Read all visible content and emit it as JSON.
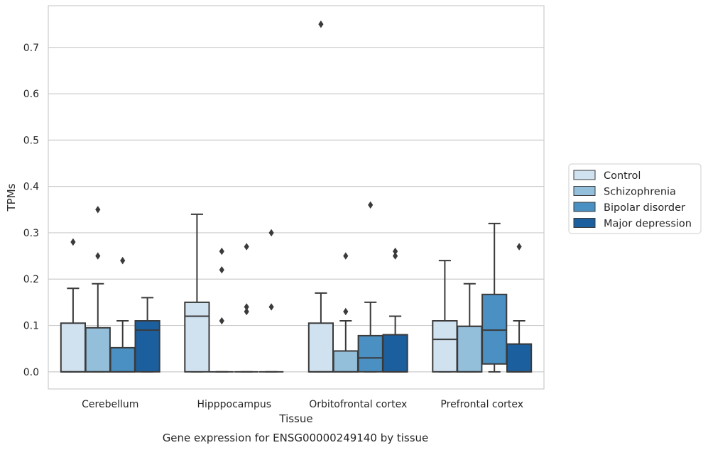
{
  "caption": "Gene expression for ENSG00000249140 by tissue",
  "colors": {
    "box_edge": "#3a3a3a",
    "grid": "#cccccc",
    "frame": "#cccccc",
    "series": [
      "#d0e1f0",
      "#94bfdb",
      "#4a90c2",
      "#1c5f9e"
    ]
  },
  "chart_data": {
    "type": "box",
    "xlabel": "Tissue",
    "ylabel": "TPMs",
    "ylim": [
      -0.037,
      0.79
    ],
    "yticks": [
      0.0,
      0.1,
      0.2,
      0.3,
      0.4,
      0.5,
      0.6,
      0.7
    ],
    "ytick_labels": [
      "0.0",
      "0.1",
      "0.2",
      "0.3",
      "0.4",
      "0.5",
      "0.6",
      "0.7"
    ],
    "grid": "horizontal",
    "legend_position": "right",
    "categories": [
      "Cerebellum",
      "Hipppocampus",
      "Orbitofrontal cortex",
      "Prefrontal cortex"
    ],
    "series": [
      {
        "name": "Control",
        "boxes": [
          {
            "whisker_low": 0.0,
            "q1": 0.0,
            "median": 0.0,
            "q3": 0.105,
            "whisker_high": 0.18,
            "outliers": [
              0.28
            ]
          },
          {
            "whisker_low": 0.0,
            "q1": 0.0,
            "median": 0.12,
            "q3": 0.15,
            "whisker_high": 0.34,
            "outliers": []
          },
          {
            "whisker_low": 0.0,
            "q1": 0.0,
            "median": 0.0,
            "q3": 0.105,
            "whisker_high": 0.17,
            "outliers": [
              0.75
            ]
          },
          {
            "whisker_low": 0.0,
            "q1": 0.0,
            "median": 0.07,
            "q3": 0.11,
            "whisker_high": 0.24,
            "outliers": []
          }
        ]
      },
      {
        "name": "Schizophrenia",
        "boxes": [
          {
            "whisker_low": 0.0,
            "q1": 0.0,
            "median": 0.0,
            "q3": 0.095,
            "whisker_high": 0.19,
            "outliers": [
              0.25,
              0.35
            ]
          },
          {
            "whisker_low": 0.0,
            "q1": 0.0,
            "median": 0.0,
            "q3": 0.0,
            "whisker_high": 0.0,
            "outliers": [
              0.11,
              0.22,
              0.26
            ]
          },
          {
            "whisker_low": 0.0,
            "q1": 0.0,
            "median": 0.0,
            "q3": 0.045,
            "whisker_high": 0.11,
            "outliers": [
              0.13,
              0.25
            ]
          },
          {
            "whisker_low": 0.0,
            "q1": 0.0,
            "median": 0.0,
            "q3": 0.098,
            "whisker_high": 0.19,
            "outliers": []
          }
        ]
      },
      {
        "name": "Bipolar disorder",
        "boxes": [
          {
            "whisker_low": 0.0,
            "q1": 0.0,
            "median": 0.0,
            "q3": 0.052,
            "whisker_high": 0.11,
            "outliers": [
              0.24
            ]
          },
          {
            "whisker_low": 0.0,
            "q1": 0.0,
            "median": 0.0,
            "q3": 0.0,
            "whisker_high": 0.0,
            "outliers": [
              0.13,
              0.14,
              0.27
            ]
          },
          {
            "whisker_low": 0.0,
            "q1": 0.0,
            "median": 0.03,
            "q3": 0.078,
            "whisker_high": 0.15,
            "outliers": [
              0.36
            ]
          },
          {
            "whisker_low": 0.0,
            "q1": 0.017,
            "median": 0.09,
            "q3": 0.167,
            "whisker_high": 0.32,
            "outliers": []
          }
        ]
      },
      {
        "name": "Major depression",
        "boxes": [
          {
            "whisker_low": 0.0,
            "q1": 0.0,
            "median": 0.09,
            "q3": 0.11,
            "whisker_high": 0.16,
            "outliers": []
          },
          {
            "whisker_low": 0.0,
            "q1": 0.0,
            "median": 0.0,
            "q3": 0.0,
            "whisker_high": 0.0,
            "outliers": [
              0.14,
              0.3
            ]
          },
          {
            "whisker_low": 0.0,
            "q1": 0.0,
            "median": 0.0,
            "q3": 0.08,
            "whisker_high": 0.12,
            "outliers": [
              0.25,
              0.26
            ]
          },
          {
            "whisker_low": 0.0,
            "q1": 0.0,
            "median": 0.0,
            "q3": 0.06,
            "whisker_high": 0.11,
            "outliers": [
              0.27
            ]
          }
        ]
      }
    ]
  }
}
